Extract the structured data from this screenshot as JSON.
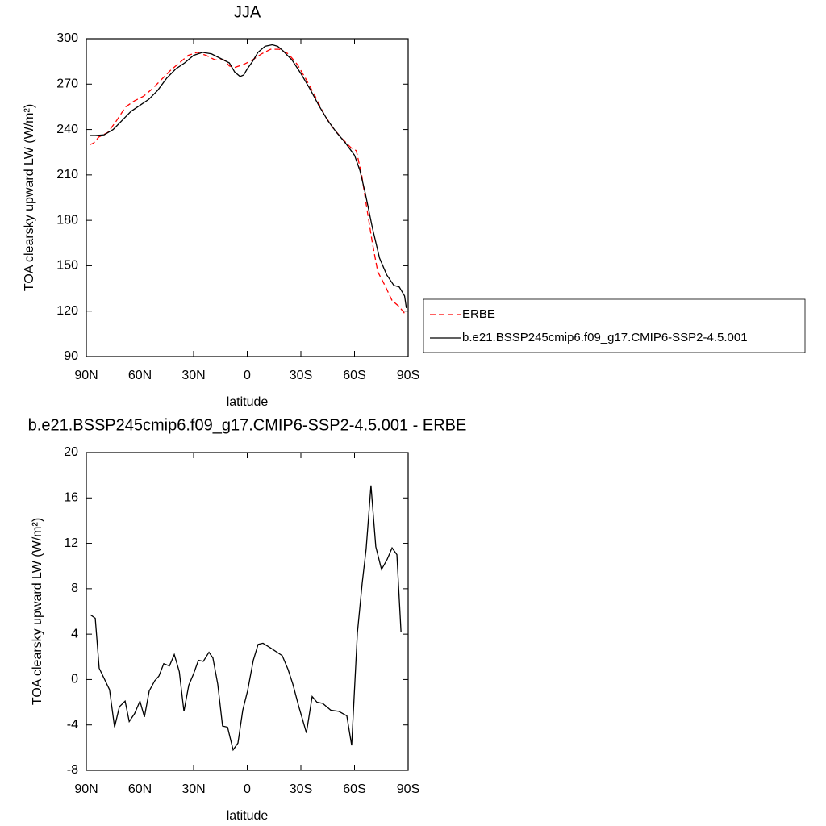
{
  "chart_data": [
    {
      "type": "line",
      "title": "JJA",
      "xlabel": "latitude",
      "ylabel": "TOA clearsky upward LW (W/m²)",
      "xlim": [
        90,
        -90
      ],
      "xticks": [
        {
          "value": 90,
          "label": "90N"
        },
        {
          "value": 60,
          "label": "60N"
        },
        {
          "value": 30,
          "label": "30N"
        },
        0,
        {
          "value": -30,
          "label": "30S"
        },
        {
          "value": -60,
          "label": "60S"
        },
        {
          "value": -90,
          "label": "90S"
        }
      ],
      "ylim": [
        90,
        300
      ],
      "yticks": [
        90,
        120,
        150,
        180,
        210,
        240,
        270,
        300
      ],
      "legend": "right",
      "series": [
        {
          "name": "ERBE",
          "color": "#ff0000",
          "line_style": "dashed",
          "x": [
            88,
            86,
            83,
            78,
            73,
            68,
            63,
            58,
            53,
            48,
            43,
            38,
            33,
            28,
            23,
            18,
            13,
            10,
            7,
            2,
            -3,
            -8,
            -13,
            -18,
            -23,
            -28,
            -33,
            -38,
            -43,
            -48,
            -53,
            -58,
            -61,
            -64,
            -67,
            -70,
            -73,
            -77,
            -81,
            -85,
            -89
          ],
          "values": [
            230,
            231,
            235,
            238,
            246,
            255,
            259,
            262,
            267,
            273,
            279,
            284,
            289,
            291,
            289,
            286,
            286,
            282,
            281,
            283,
            286,
            290,
            293,
            293,
            290,
            283,
            273,
            262,
            250,
            241,
            234,
            228,
            226,
            210,
            187,
            165,
            146,
            137,
            127,
            123,
            117
          ]
        },
        {
          "name": "b.e21.BSSP245cmip6.f09_g17.CMIP6-SSP2-4.5.001",
          "color": "#000000",
          "line_style": "solid",
          "x": [
            88,
            85,
            80,
            75,
            70,
            65,
            60,
            55,
            50,
            45,
            40,
            35,
            30,
            25,
            20,
            15,
            10,
            7,
            4,
            2,
            0,
            -3,
            -6,
            -10,
            -14,
            -17,
            -20,
            -25,
            -30,
            -35,
            -40,
            -45,
            -50,
            -55,
            -60,
            -63,
            -66,
            -70,
            -74,
            -78,
            -82,
            -85,
            -88,
            -89
          ],
          "values": [
            236,
            236,
            236.5,
            240,
            246,
            252,
            256,
            260,
            266,
            274,
            280,
            284,
            289,
            291,
            290,
            287,
            284,
            278,
            275,
            276,
            280,
            285,
            291,
            295,
            296,
            295,
            292,
            286,
            277,
            267,
            256,
            246,
            238,
            231,
            223,
            213,
            198,
            175,
            155,
            144,
            137,
            136,
            130,
            122
          ]
        }
      ]
    },
    {
      "type": "line",
      "title": "b.e21.BSSP245cmip6.f09_g17.CMIP6-SSP2-4.5.001 - ERBE",
      "xlabel": "latitude",
      "ylabel": "TOA clearsky upward LW (W/m²)",
      "xlim": [
        90,
        -90
      ],
      "xticks": [
        {
          "value": 90,
          "label": "90N"
        },
        {
          "value": 60,
          "label": "60N"
        },
        {
          "value": 30,
          "label": "30N"
        },
        0,
        {
          "value": -30,
          "label": "30S"
        },
        {
          "value": -60,
          "label": "60S"
        },
        {
          "value": -90,
          "label": "90S"
        }
      ],
      "ylim": [
        -8,
        20
      ],
      "yticks": [
        -8,
        -4,
        0,
        4,
        8,
        12,
        16,
        20
      ],
      "color": "#000000",
      "x": [
        87.7,
        85,
        82.8,
        77,
        74.2,
        71.5,
        68.3,
        66,
        63,
        60,
        57.5,
        54.8,
        51.7,
        49.4,
        46.7,
        43.5,
        40.8,
        38,
        35.4,
        32.7,
        30,
        27.3,
        24.6,
        21.4,
        19.2,
        16.5,
        13.8,
        11,
        7.9,
        5.2,
        2.5,
        -0.2,
        -3.4,
        -6.1,
        -8.8,
        -12.9,
        -19.6,
        -22.8,
        -25.5,
        -28.7,
        -33.1,
        -36.3,
        -39,
        -42.2,
        -46.7,
        -51.2,
        -55.7,
        -58.4,
        -61.6,
        -64.3,
        -66.5,
        -69.2,
        -71.9,
        -75.1,
        -78.3,
        -81,
        -83.7,
        -86
      ],
      "values": [
        5.7,
        5.4,
        1.0,
        -0.9,
        -4.2,
        -2.4,
        -1.9,
        -3.7,
        -3.0,
        -1.9,
        -3.3,
        -1.0,
        -0.1,
        0.3,
        1.4,
        1.2,
        2.2,
        0.7,
        -2.8,
        -0.5,
        0.5,
        1.7,
        1.6,
        2.4,
        1.9,
        -0.4,
        -4.1,
        -4.2,
        -6.2,
        -5.6,
        -2.7,
        -1.0,
        1.7,
        3.1,
        3.2,
        2.8,
        2.1,
        0.9,
        -0.4,
        -2.3,
        -4.7,
        -1.5,
        -2.0,
        -2.1,
        -2.7,
        -2.8,
        -3.2,
        -5.8,
        4.1,
        8.5,
        11.5,
        17.1,
        11.7,
        9.7,
        10.6,
        11.6,
        11.0,
        4.2
      ]
    }
  ]
}
